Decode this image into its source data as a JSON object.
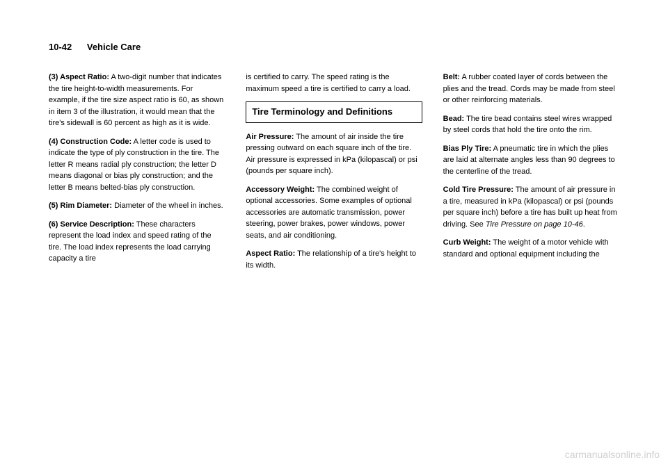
{
  "header": {
    "page_number": "10-42",
    "chapter": "Vehicle Care"
  },
  "col1": {
    "p1_lead": "(3) Aspect Ratio:",
    "p1_body": " A two-digit number that indicates the tire height-to-width measurements. For example, if the tire size aspect ratio is 60, as shown in item 3 of the illustration, it would mean that the tire's sidewall is 60 percent as high as it is wide.",
    "p2_lead": "(4) Construction Code:",
    "p2_body": " A letter code is used to indicate the type of ply construction in the tire. The letter R means radial ply construction; the letter D means diagonal or bias ply construction; and the letter B means belted-bias ply construction.",
    "p3_lead": "(5) Rim Diameter:",
    "p3_body": " Diameter of the wheel in inches.",
    "p4_lead": "(6) Service Description:",
    "p4_body": " These characters represent the load index and speed rating of the tire. The load index represents the load carrying capacity a tire"
  },
  "col2": {
    "p1": "is certified to carry. The speed rating is the maximum speed a tire is certified to carry a load.",
    "section_title": "Tire Terminology and Definitions",
    "p2_lead": "Air Pressure:",
    "p2_body": " The amount of air inside the tire pressing outward on each square inch of the tire. Air pressure is expressed in kPa (kilopascal) or psi (pounds per square inch).",
    "p3_lead": "Accessory Weight:",
    "p3_body": " The combined weight of optional accessories. Some examples of optional accessories are automatic transmission, power steering, power brakes, power windows, power seats, and air conditioning.",
    "p4_lead": "Aspect Ratio:",
    "p4_body": " The relationship of a tire's height to its width."
  },
  "col3": {
    "p1_lead": "Belt:",
    "p1_body": " A rubber coated layer of cords between the plies and the tread. Cords may be made from steel or other reinforcing materials.",
    "p2_lead": "Bead:",
    "p2_body": " The tire bead contains steel wires wrapped by steel cords that hold the tire onto the rim.",
    "p3_lead": "Bias Ply Tire:",
    "p3_body": " A pneumatic tire in which the plies are laid at alternate angles less than 90 degrees to the centerline of the tread.",
    "p4_lead": "Cold Tire Pressure:",
    "p4_body_a": " The amount of air pressure in a tire, measured in kPa (kilopascal) or psi (pounds per square inch) before a tire has built up heat from driving. See ",
    "p4_body_italic": "Tire Pressure on page 10-46",
    "p4_body_b": ".",
    "p5_lead": "Curb Weight:",
    "p5_body": " The weight of a motor vehicle with standard and optional equipment including the"
  },
  "watermark": "carmanualsonline.info"
}
